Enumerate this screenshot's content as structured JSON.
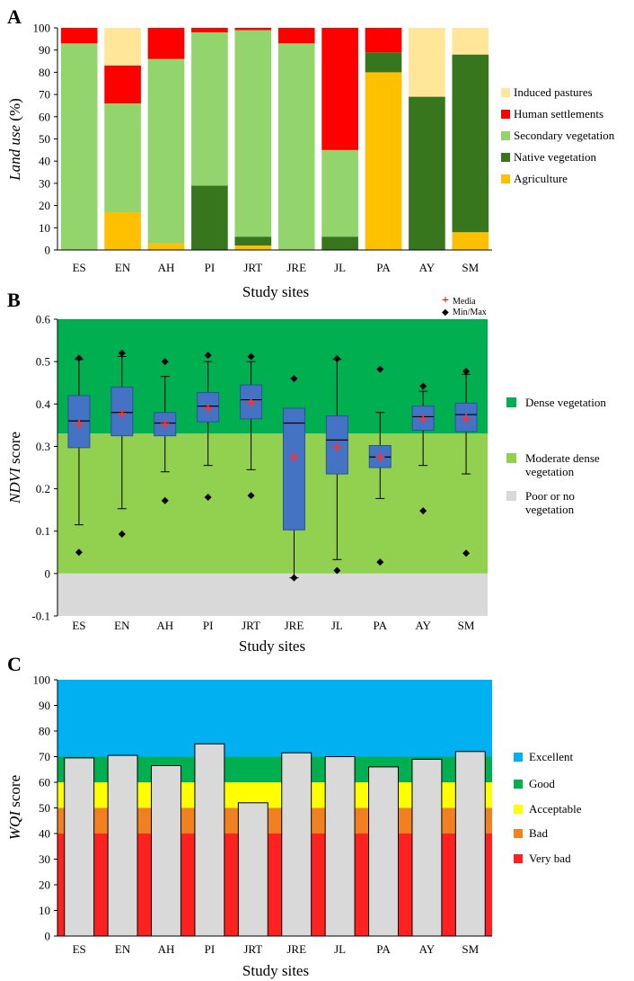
{
  "chart_data": [
    {
      "type": "bar",
      "stacked": true,
      "panel": "A",
      "xlabel": "Study sites",
      "ylabel_italic": "Land use",
      "ylabel_suffix": " (%)",
      "ylim": [
        0,
        100
      ],
      "yticks": [
        "0",
        "10",
        "20",
        "30",
        "40",
        "50",
        "60",
        "70",
        "80",
        "90",
        "100"
      ],
      "categories": [
        "ES",
        "EN",
        "AH",
        "PI",
        "JRT",
        "JRE",
        "JL",
        "PA",
        "AY",
        "SM"
      ],
      "series": [
        {
          "name": "Agriculture",
          "color": "#FFC000",
          "values": [
            0,
            17,
            3,
            0,
            2,
            0,
            0,
            80,
            0,
            8
          ]
        },
        {
          "name": "Native vegetation",
          "color": "#38761D",
          "values": [
            0,
            0,
            0,
            29,
            4,
            0,
            6,
            9,
            69,
            80
          ]
        },
        {
          "name": "Secondary vegetation",
          "color": "#93D56C",
          "values": [
            93,
            49,
            83,
            69,
            93,
            93,
            39,
            0,
            0,
            0
          ]
        },
        {
          "name": "Human settlements",
          "color": "#FF0000",
          "values": [
            7,
            17,
            14,
            2,
            1,
            7,
            55,
            11,
            0,
            0
          ]
        },
        {
          "name": "Induced pastures",
          "color": "#FFE699",
          "values": [
            0,
            17,
            0,
            0,
            0,
            0,
            0,
            0,
            31,
            12
          ]
        }
      ],
      "legend": [
        "Induced pastures",
        "Human settlements",
        "Secondary vegetation",
        "Native vegetation",
        "Agriculture"
      ]
    },
    {
      "type": "boxplot",
      "panel": "B",
      "xlabel": "Study sites",
      "ylabel_italic": "NDVI",
      "ylabel_suffix": " score",
      "ylim": [
        -0.1,
        0.6
      ],
      "yticks": [
        "-0.1",
        "0",
        "0.1",
        "0.2",
        "0.3",
        "0.4",
        "0.5",
        "0.6"
      ],
      "categories": [
        "ES",
        "EN",
        "AH",
        "PI",
        "JRT",
        "JRE",
        "JL",
        "PA",
        "AY",
        "SM"
      ],
      "bands": [
        {
          "name": "Dense vegetation",
          "from": 0.33,
          "to": 0.6,
          "color": "#00B050"
        },
        {
          "name": "Moderate dense vegetation",
          "from": 0.0,
          "to": 0.33,
          "color": "#92D050"
        },
        {
          "name": "Poor or no vegetation",
          "from": -0.1,
          "to": 0.0,
          "color": "#D9D9D9"
        }
      ],
      "boxes": [
        {
          "q1": 0.297,
          "median": 0.36,
          "q3": 0.42,
          "wlo": 0.115,
          "whi": 0.505,
          "mean": 0.352,
          "min": 0.05,
          "max": 0.508
        },
        {
          "q1": 0.325,
          "median": 0.38,
          "q3": 0.44,
          "wlo": 0.153,
          "whi": 0.512,
          "mean": 0.377,
          "min": 0.093,
          "max": 0.52
        },
        {
          "q1": 0.325,
          "median": 0.355,
          "q3": 0.38,
          "wlo": 0.24,
          "whi": 0.465,
          "mean": 0.353,
          "min": 0.172,
          "max": 0.5
        },
        {
          "q1": 0.358,
          "median": 0.395,
          "q3": 0.427,
          "wlo": 0.255,
          "whi": 0.5,
          "mean": 0.39,
          "min": 0.18,
          "max": 0.515
        },
        {
          "q1": 0.365,
          "median": 0.41,
          "q3": 0.445,
          "wlo": 0.245,
          "whi": 0.5,
          "mean": 0.403,
          "min": 0.184,
          "max": 0.512
        },
        {
          "q1": 0.103,
          "median": 0.355,
          "q3": 0.39,
          "wlo": -0.01,
          "whi": 0.39,
          "mean": 0.275,
          "min": -0.01,
          "max": 0.46
        },
        {
          "q1": 0.235,
          "median": 0.315,
          "q3": 0.372,
          "wlo": 0.033,
          "whi": 0.505,
          "mean": 0.298,
          "min": 0.007,
          "max": 0.507
        },
        {
          "q1": 0.25,
          "median": 0.275,
          "q3": 0.302,
          "wlo": 0.177,
          "whi": 0.38,
          "mean": 0.275,
          "min": 0.027,
          "max": 0.482
        },
        {
          "q1": 0.338,
          "median": 0.37,
          "q3": 0.395,
          "wlo": 0.255,
          "whi": 0.43,
          "mean": 0.365,
          "min": 0.148,
          "max": 0.442
        },
        {
          "q1": 0.335,
          "median": 0.375,
          "q3": 0.402,
          "wlo": 0.235,
          "whi": 0.47,
          "mean": 0.366,
          "min": 0.048,
          "max": 0.477
        }
      ],
      "marker_legend": [
        {
          "symbol": "+",
          "label": "Media",
          "color": "#FF0000"
        },
        {
          "symbol": "◆",
          "label": "Min/Max",
          "color": "#000000"
        }
      ],
      "legend": [
        "Dense vegetation",
        "Moderate dense vegetation",
        "Poor or no vegetation"
      ]
    },
    {
      "type": "bar",
      "panel": "C",
      "xlabel": "Study sites",
      "ylabel_italic": "WQI",
      "ylabel_suffix": " score",
      "ylim": [
        0,
        100
      ],
      "yticks": [
        "0",
        "10",
        "20",
        "30",
        "40",
        "50",
        "60",
        "70",
        "80",
        "90",
        "100"
      ],
      "categories": [
        "ES",
        "EN",
        "AH",
        "PI",
        "JRT",
        "JRE",
        "JL",
        "PA",
        "AY",
        "SM"
      ],
      "values": [
        69.5,
        70.5,
        66.5,
        75,
        52,
        71.5,
        70,
        66,
        69,
        72
      ],
      "bar_color": "#D9D9D9",
      "bands": [
        {
          "name": "Excellent",
          "from": 70,
          "to": 100,
          "color": "#00B0F0"
        },
        {
          "name": "Good",
          "from": 60,
          "to": 70,
          "color": "#00B050"
        },
        {
          "name": "Acceptable",
          "from": 50,
          "to": 60,
          "color": "#FFFF00"
        },
        {
          "name": "Bad",
          "from": 40,
          "to": 50,
          "color": "#F08020"
        },
        {
          "name": "Very bad",
          "from": 0,
          "to": 40,
          "color": "#FF2020"
        }
      ],
      "legend": [
        "Excellent",
        "Good",
        "Acceptable",
        "Bad",
        "Very bad"
      ]
    }
  ]
}
